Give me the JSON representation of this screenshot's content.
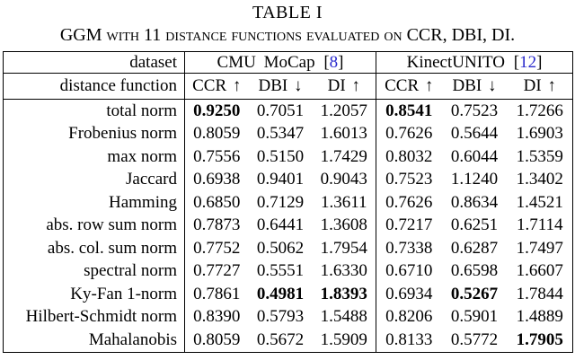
{
  "title": "TABLE I",
  "caption": "GGM with 11 distance functions evaluated on CCR, DBI, DI.",
  "colors": {
    "text": "#000000",
    "background": "#ffffff",
    "border": "#000000",
    "citation_link": "#2929cc"
  },
  "table": {
    "header": {
      "dataset_label": "dataset",
      "distance_function_label": "distance function",
      "groups": [
        {
          "name": "CMU MoCap",
          "cite_open": "[",
          "cite_num": "8",
          "cite_close": "]"
        },
        {
          "name": "KinectUNITO",
          "cite_open": "[",
          "cite_num": "12",
          "cite_close": "]"
        }
      ],
      "metrics": [
        "CCR ↑",
        "DBI ↓",
        "DI ↑"
      ]
    },
    "rows": [
      {
        "label": "total norm",
        "values": [
          "0.9250",
          "0.7051",
          "1.2057",
          "0.8541",
          "0.7523",
          "1.7266"
        ],
        "bold": [
          0,
          3
        ]
      },
      {
        "label": "Frobenius norm",
        "values": [
          "0.8059",
          "0.5347",
          "1.6013",
          "0.7626",
          "0.5644",
          "1.6903"
        ],
        "bold": []
      },
      {
        "label": "max norm",
        "values": [
          "0.7556",
          "0.5150",
          "1.7429",
          "0.8032",
          "0.6044",
          "1.5359"
        ],
        "bold": []
      },
      {
        "label": "Jaccard",
        "values": [
          "0.6938",
          "0.9401",
          "0.9043",
          "0.7523",
          "1.1240",
          "1.3402"
        ],
        "bold": []
      },
      {
        "label": "Hamming",
        "values": [
          "0.6850",
          "0.7129",
          "1.3611",
          "0.7626",
          "0.8634",
          "1.4521"
        ],
        "bold": []
      },
      {
        "label": "abs. row sum norm",
        "values": [
          "0.7873",
          "0.6441",
          "1.3608",
          "0.7217",
          "0.6251",
          "1.7114"
        ],
        "bold": []
      },
      {
        "label": "abs. col. sum norm",
        "values": [
          "0.7752",
          "0.5062",
          "1.7954",
          "0.7338",
          "0.6287",
          "1.7497"
        ],
        "bold": []
      },
      {
        "label": "spectral norm",
        "values": [
          "0.7727",
          "0.5551",
          "1.6330",
          "0.6710",
          "0.6598",
          "1.6607"
        ],
        "bold": []
      },
      {
        "label": "Ky-Fan 1-norm",
        "values": [
          "0.7861",
          "0.4981",
          "1.8393",
          "0.6934",
          "0.5267",
          "1.7844"
        ],
        "bold": [
          1,
          2,
          4
        ]
      },
      {
        "label": "Hilbert-Schmidt norm",
        "values": [
          "0.8390",
          "0.5793",
          "1.5488",
          "0.8206",
          "0.5901",
          "1.4889"
        ],
        "bold": []
      },
      {
        "label": "Mahalanobis",
        "values": [
          "0.8059",
          "0.5672",
          "1.5909",
          "0.8133",
          "0.5772",
          "1.7905"
        ],
        "bold": [
          5
        ]
      }
    ]
  }
}
